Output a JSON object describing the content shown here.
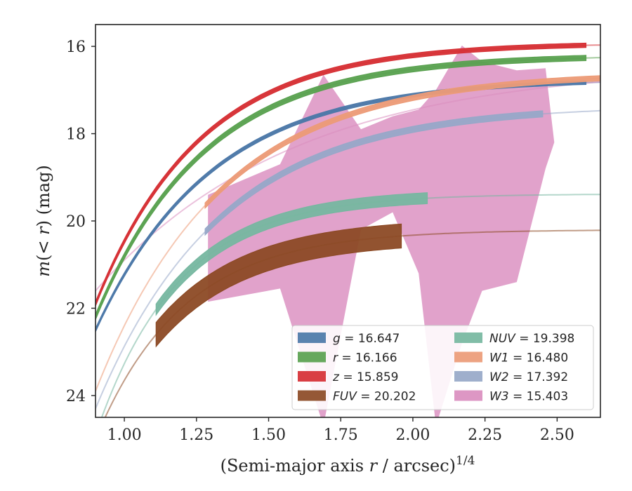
{
  "chart_data": {
    "type": "line",
    "title": "",
    "xlabel": "(Semi-major axis r / arcsec)^{1/4}",
    "xlabel_parts": [
      "(Semi-major axis ",
      "r",
      " / arcsec)",
      "1/4"
    ],
    "ylabel": "m(< r) (mag)",
    "ylabel_parts": [
      "m",
      "(< ",
      "r",
      ") (mag)"
    ],
    "xlim": [
      0.9,
      2.65
    ],
    "ylim": [
      24.5,
      15.5
    ],
    "y_inverted": true,
    "grid": false,
    "legend_placement": "lower-right",
    "xticks": [
      1.0,
      1.25,
      1.5,
      1.75,
      2.0,
      2.25,
      2.5
    ],
    "xtick_labels": [
      "1.00",
      "1.25",
      "1.50",
      "1.75",
      "2.00",
      "2.25",
      "2.50"
    ],
    "yticks": [
      16,
      18,
      20,
      22,
      24
    ],
    "ytick_labels": [
      "16",
      "18",
      "20",
      "22",
      "24"
    ],
    "series": [
      {
        "name": "g = 16.647",
        "italic_name": "g",
        "value_text": " = 16.647",
        "color": "#4c78a8",
        "fit": {
          "m_tot": 16.75,
          "m0": 22.5,
          "k": 2.5,
          "x0": 0.9
        },
        "band": {
          "x_range": [
            0.9,
            2.6
          ],
          "width": 0.08
        }
      },
      {
        "name": "r = 16.166",
        "italic_name": "r",
        "value_text": " = 16.166",
        "color": "#59a14f",
        "fit": {
          "m_tot": 16.2,
          "m0": 22.2,
          "k": 2.65,
          "x0": 0.9
        },
        "band": {
          "x_range": [
            0.9,
            2.6
          ],
          "width": 0.12
        }
      },
      {
        "name": "z = 15.859",
        "italic_name": "z",
        "value_text": " = 15.859",
        "color": "#d62f34",
        "fit": {
          "m_tot": 15.92,
          "m0": 21.9,
          "k": 2.75,
          "x0": 0.9
        },
        "band": {
          "x_range": [
            0.9,
            2.6
          ],
          "width": 0.1
        }
      },
      {
        "name": "FUV = 20.202",
        "italic_name": "FUV",
        "value_text": " = 20.202",
        "color": "#8c4a25",
        "fit": {
          "m_tot": 20.2,
          "m0": 25.0,
          "k": 3.3,
          "x0": 0.9
        },
        "band": {
          "x_range": [
            1.11,
            1.96
          ],
          "width": 0.55
        }
      },
      {
        "name": "NUV = 19.398",
        "italic_name": "NUV",
        "value_text": " = 19.398",
        "color": "#76b7a0",
        "fit": {
          "m_tot": 19.38,
          "m0": 24.9,
          "k": 3.5,
          "x0": 0.9
        },
        "band": {
          "x_range": [
            1.11,
            2.05
          ],
          "width": 0.25
        }
      },
      {
        "name": "W1 = 16.480",
        "italic_name": "W1",
        "value_text": " = 16.480",
        "color": "#ec9b77",
        "fit": {
          "m_tot": 16.6,
          "m0": 23.9,
          "k": 2.3,
          "x0": 0.9
        },
        "band": {
          "x_range": [
            1.28,
            2.65
          ],
          "width": 0.12
        }
      },
      {
        "name": "W2 = 17.392",
        "italic_name": "W2",
        "value_text": " = 17.392",
        "color": "#97a8c8",
        "fit": {
          "m_tot": 17.35,
          "m0": 24.3,
          "k": 2.3,
          "x0": 0.9
        },
        "band": {
          "x_range": [
            1.28,
            2.45
          ],
          "width": 0.14
        }
      },
      {
        "name": "W3 = 15.403",
        "italic_name": "W3",
        "value_text": " = 15.403",
        "color": "#da8ebf",
        "fit": {
          "m_tot": 16.4,
          "m0": 21.6,
          "k": 1.45,
          "x0": 0.9
        },
        "band": null,
        "range_band": {
          "x": [
            1.29,
            1.54,
            1.69,
            1.82,
            1.93,
            2.02,
            2.08,
            2.17,
            2.24,
            2.36,
            2.46,
            2.49,
            2.52,
            2.58
          ],
          "y_bright": [
            19.4,
            18.7,
            16.65,
            17.9,
            17.6,
            17.45,
            17.0,
            15.98,
            16.35,
            16.55,
            16.5,
            18.2,
            18.3,
            18.35
          ],
          "y_faint": [
            21.85,
            21.55,
            24.7,
            20.2,
            19.8,
            21.2,
            24.7,
            22.8,
            21.6,
            21.4,
            18.8,
            18.2,
            18.3,
            18.35
          ]
        }
      }
    ]
  }
}
